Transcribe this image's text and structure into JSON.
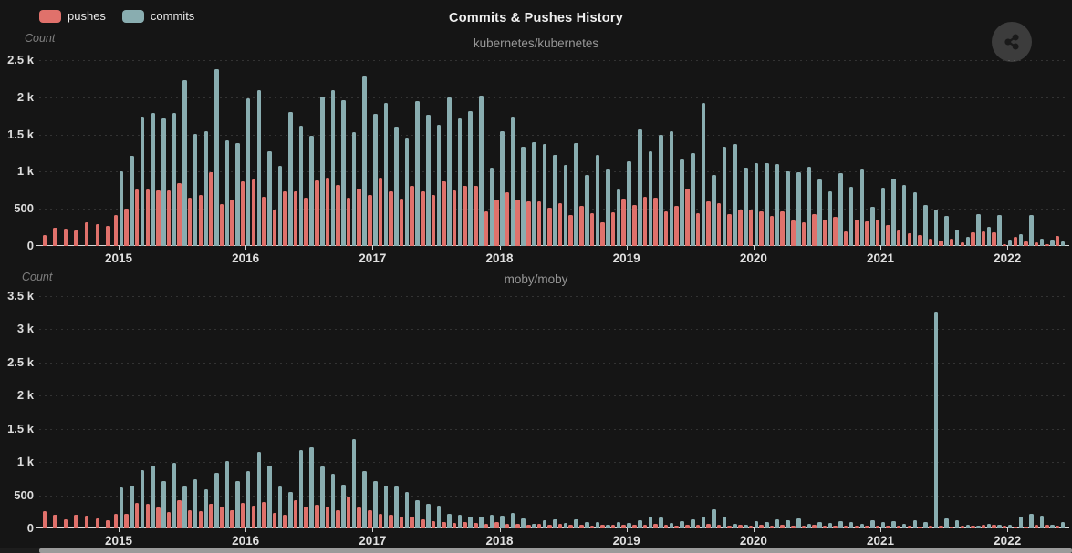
{
  "app": {
    "title": "Commits & Pushes History"
  },
  "legend": {
    "items": [
      {
        "label": "pushes",
        "color": "#e0716b"
      },
      {
        "label": "commits",
        "color": "#89adb0"
      }
    ]
  },
  "share_button": {
    "icon": "share-icon"
  },
  "scrollbar": {
    "orientation": "horizontal"
  },
  "chart_data": [
    {
      "type": "bar",
      "title": "kubernetes/kubernetes",
      "ylabel": "Count",
      "xlabel": "",
      "x_unit": "month",
      "start_month": "2014-06",
      "ylim": [
        0,
        2500
      ],
      "grid": "dashed-horizontal",
      "legend_position": "top-left",
      "yticks": [
        {
          "label": "0",
          "value": 0
        },
        {
          "label": "500",
          "value": 500
        },
        {
          "label": "1 k",
          "value": 1000
        },
        {
          "label": "1.5 k",
          "value": 1500
        },
        {
          "label": "2 k",
          "value": 2000
        },
        {
          "label": "2.5 k",
          "value": 2500
        }
      ],
      "xticks": [
        {
          "label": "2015",
          "month_index": 7
        },
        {
          "label": "2016",
          "month_index": 19
        },
        {
          "label": "2017",
          "month_index": 31
        },
        {
          "label": "2018",
          "month_index": 43
        },
        {
          "label": "2019",
          "month_index": 55
        },
        {
          "label": "2020",
          "month_index": 67
        },
        {
          "label": "2021",
          "month_index": 79
        },
        {
          "label": "2022",
          "month_index": 91
        }
      ],
      "series": [
        {
          "name": "pushes",
          "color": "#e0716b",
          "values": [
            150,
            245,
            230,
            210,
            315,
            295,
            270,
            415,
            500,
            765,
            755,
            750,
            745,
            840,
            655,
            690,
            990,
            565,
            620,
            870,
            895,
            660,
            495,
            740,
            730,
            650,
            880,
            925,
            825,
            645,
            770,
            690,
            915,
            730,
            635,
            810,
            730,
            690,
            875,
            745,
            805,
            815,
            470,
            620,
            725,
            620,
            605,
            595,
            515,
            575,
            420,
            535,
            440,
            315,
            455,
            635,
            555,
            665,
            655,
            465,
            540,
            775,
            445,
            600,
            580,
            435,
            490,
            495,
            470,
            405,
            460,
            340,
            315,
            425,
            355,
            395,
            200,
            350,
            335,
            355,
            280,
            210,
            170,
            145,
            100,
            75,
            100,
            52,
            180,
            200,
            180,
            20,
            124,
            60,
            44,
            30,
            140
          ]
        },
        {
          "name": "commits",
          "color": "#89adb0",
          "values": [
            0,
            0,
            0,
            0,
            0,
            0,
            0,
            1010,
            1210,
            1745,
            1785,
            1715,
            1790,
            2225,
            1505,
            1540,
            2375,
            1425,
            1380,
            1980,
            2090,
            1270,
            1075,
            1800,
            1620,
            1480,
            2005,
            2095,
            1960,
            1535,
            2295,
            1775,
            1930,
            1600,
            1450,
            1945,
            1770,
            1630,
            2000,
            1710,
            1815,
            2020,
            1055,
            1540,
            1735,
            1340,
            1400,
            1370,
            1220,
            1085,
            1380,
            950,
            1220,
            1035,
            760,
            1140,
            1570,
            1270,
            1500,
            1545,
            1170,
            1250,
            1920,
            960,
            1340,
            1370,
            1050,
            1120,
            1115,
            1100,
            1000,
            995,
            1070,
            895,
            730,
            985,
            800,
            1035,
            525,
            785,
            910,
            820,
            720,
            555,
            485,
            400,
            220,
            120,
            432,
            260,
            412,
            84,
            156,
            412,
            100,
            90,
            60
          ]
        }
      ]
    },
    {
      "type": "bar",
      "title": "moby/moby",
      "ylabel": "Count",
      "xlabel": "",
      "x_unit": "month",
      "start_month": "2014-06",
      "ylim": [
        0,
        3500
      ],
      "grid": "dashed-horizontal",
      "legend_position": "shared-top-left",
      "yticks": [
        {
          "label": "0",
          "value": 0
        },
        {
          "label": "500",
          "value": 500
        },
        {
          "label": "1 k",
          "value": 1000
        },
        {
          "label": "1.5 k",
          "value": 1500
        },
        {
          "label": "2 k",
          "value": 2000
        },
        {
          "label": "2.5 k",
          "value": 2500
        },
        {
          "label": "3 k",
          "value": 3000
        },
        {
          "label": "3.5 k",
          "value": 3500
        }
      ],
      "xticks": [
        {
          "label": "2015",
          "month_index": 7
        },
        {
          "label": "2016",
          "month_index": 19
        },
        {
          "label": "2017",
          "month_index": 31
        },
        {
          "label": "2018",
          "month_index": 43
        },
        {
          "label": "2019",
          "month_index": 55
        },
        {
          "label": "2020",
          "month_index": 67
        },
        {
          "label": "2021",
          "month_index": 79
        },
        {
          "label": "2022",
          "month_index": 91
        }
      ],
      "series": [
        {
          "name": "pushes",
          "color": "#e0716b",
          "values": [
            260,
            210,
            140,
            205,
            190,
            155,
            130,
            225,
            215,
            380,
            375,
            310,
            250,
            425,
            280,
            265,
            365,
            335,
            275,
            385,
            345,
            400,
            240,
            210,
            430,
            325,
            355,
            325,
            270,
            475,
            315,
            275,
            220,
            200,
            180,
            175,
            140,
            115,
            100,
            80,
            95,
            80,
            75,
            90,
            70,
            65,
            60,
            70,
            55,
            65,
            50,
            60,
            45,
            55,
            50,
            55,
            60,
            50,
            65,
            55,
            45,
            60,
            50,
            70,
            55,
            45,
            50,
            45,
            55,
            40,
            50,
            45,
            40,
            50,
            40,
            45,
            35,
            40,
            45,
            40,
            45,
            35,
            40,
            30,
            35,
            40,
            30,
            35,
            45,
            55,
            60,
            35,
            30,
            25,
            50,
            60,
            45
          ]
        },
        {
          "name": "commits",
          "color": "#89adb0",
          "values": [
            0,
            0,
            0,
            0,
            0,
            0,
            0,
            615,
            645,
            875,
            950,
            720,
            985,
            625,
            735,
            585,
            835,
            1010,
            710,
            860,
            1150,
            945,
            630,
            555,
            1180,
            1220,
            930,
            830,
            665,
            1345,
            865,
            710,
            640,
            630,
            545,
            430,
            375,
            345,
            225,
            205,
            180,
            175,
            200,
            190,
            240,
            150,
            70,
            125,
            135,
            80,
            140,
            95,
            90,
            55,
            100,
            85,
            125,
            175,
            160,
            80,
            110,
            135,
            180,
            295,
            175,
            75,
            55,
            115,
            90,
            135,
            125,
            155,
            75,
            100,
            85,
            110,
            95,
            70,
            130,
            90,
            110,
            75,
            130,
            95,
            3250,
            155,
            127,
            60,
            45,
            70,
            55,
            60,
            180,
            215,
            195,
            60,
            90
          ]
        }
      ]
    }
  ]
}
